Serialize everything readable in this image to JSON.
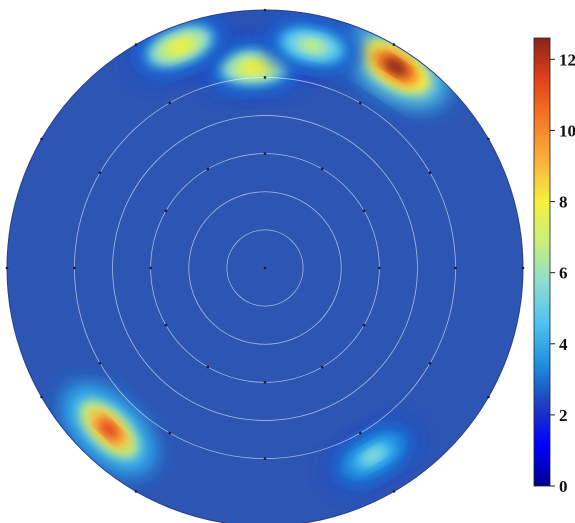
{
  "chart_data": {
    "type": "heatmap",
    "projection": "polar",
    "title": "",
    "colorbar": {
      "range": [
        0,
        12.6
      ],
      "ticks": [
        0,
        2,
        4,
        6,
        8,
        10,
        12
      ],
      "tick_labels": [
        "0",
        "2",
        "4",
        "6",
        "8",
        "10",
        "12"
      ],
      "colormap": [
        "#00008f",
        "#0000ff",
        "#1e3fbf",
        "#1f8fe0",
        "#4fc3f2",
        "#8fdcd0",
        "#c8ef7a",
        "#f5f03c",
        "#fbb03b",
        "#f47a25",
        "#e2401c",
        "#8b2418"
      ]
    },
    "background_value": 1,
    "grid": {
      "rings": 5,
      "spokes": 12
    },
    "hotspots": [
      {
        "angle_deg": 57,
        "radius_frac": 0.93,
        "peak": 12.5
      },
      {
        "angle_deg": 93,
        "radius_frac": 0.78,
        "peak": 8.5
      },
      {
        "angle_deg": 111,
        "radius_frac": 0.92,
        "peak": 8.0
      },
      {
        "angle_deg": 78,
        "radius_frac": 0.88,
        "peak": 6.5
      },
      {
        "angle_deg": 226,
        "radius_frac": 0.87,
        "peak": 11.0
      },
      {
        "angle_deg": 300,
        "radius_frac": 0.84,
        "peak": 6.0
      }
    ]
  },
  "colors": {
    "background": "#2d55b4",
    "grid": "#ffffff",
    "node": "#1a1a2e"
  }
}
